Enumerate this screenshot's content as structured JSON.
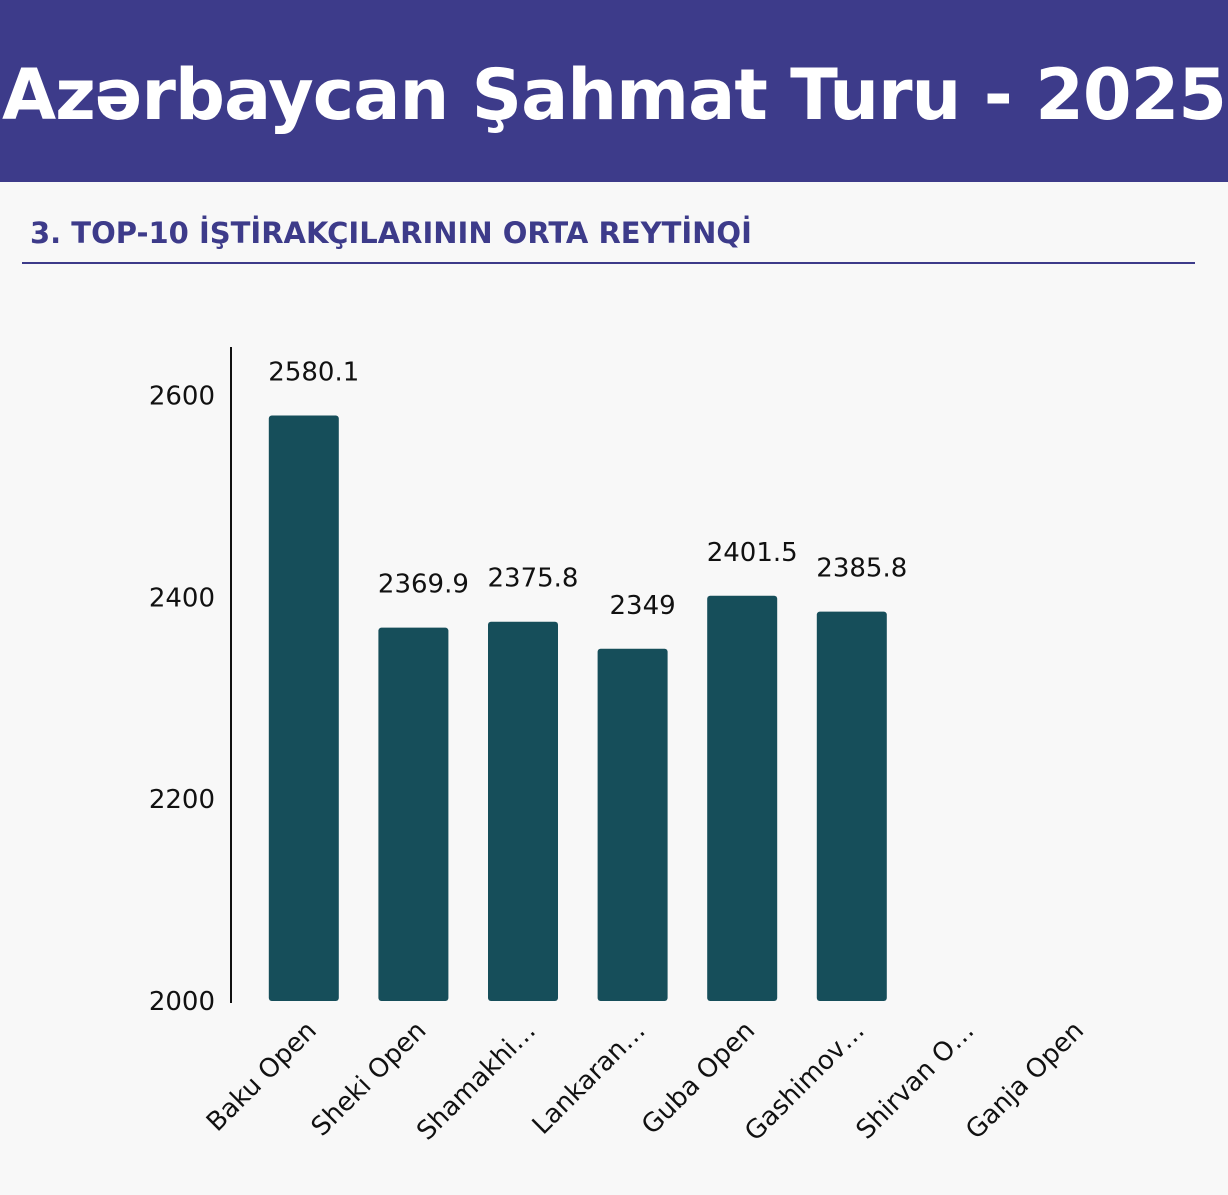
{
  "header": {
    "title": "Azərbaycan Şahmat Turu - 2025"
  },
  "chart_data": {
    "type": "bar",
    "title": "3. TOP-10 İŞTİRAKÇILARININ ORTA REYTİNQİ",
    "categories": [
      "Baku Open",
      "Sheki Open",
      "Shamakhi…",
      "Lankaran…",
      "Guba Open",
      "Gashimov…",
      "Shirvan O…",
      "Ganja Open"
    ],
    "values": [
      2580.1,
      2369.9,
      2375.8,
      2349,
      2401.5,
      2385.8,
      null,
      null
    ],
    "color": "#164e5a",
    "ylim": [
      2000,
      2650
    ],
    "yticks": [
      2000,
      2200,
      2400,
      2600
    ],
    "grid": false
  }
}
